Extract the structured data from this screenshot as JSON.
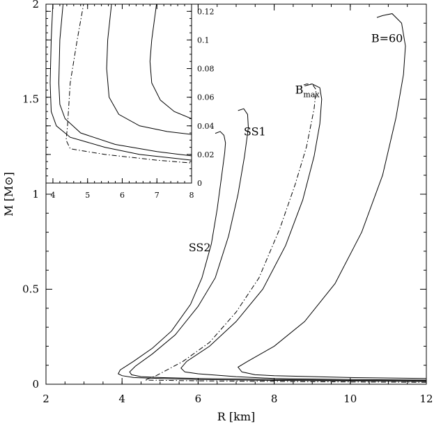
{
  "chart_data": {
    "type": "line",
    "xlabel": "R [km]",
    "ylabel": "M [M⊙]",
    "xlim": [
      2,
      12
    ],
    "ylim": [
      0,
      2
    ],
    "x_ticks": [
      2,
      4,
      6,
      8,
      10,
      12
    ],
    "y_ticks": [
      0,
      0.5,
      1,
      1.5,
      2
    ],
    "x_tick_labels": [
      "2",
      "4",
      "6",
      "8",
      "10",
      "12"
    ],
    "y_tick_labels": [
      "0",
      "0.5",
      "1",
      "1.5",
      "2"
    ],
    "grid": false,
    "annotations": [
      {
        "text": "B=60",
        "x": 10.55,
        "y": 1.8
      },
      {
        "text": "B",
        "sub": "max",
        "x": 8.55,
        "y": 1.53
      },
      {
        "text": "SS1",
        "x": 7.2,
        "y": 1.31
      },
      {
        "text": "SS2",
        "x": 5.75,
        "y": 0.7
      }
    ],
    "series": [
      {
        "style": "solid",
        "points": [
          [
            12,
            0.015
          ],
          [
            10,
            0.018
          ],
          [
            8,
            0.02
          ],
          [
            6,
            0.025
          ],
          [
            5,
            0.03
          ],
          [
            4.3,
            0.035
          ],
          [
            4.0,
            0.045
          ],
          [
            3.9,
            0.055
          ],
          [
            3.95,
            0.075
          ],
          [
            4.3,
            0.12
          ],
          [
            4.8,
            0.19
          ],
          [
            5.3,
            0.28
          ],
          [
            5.8,
            0.42
          ],
          [
            6.1,
            0.56
          ],
          [
            6.35,
            0.74
          ],
          [
            6.5,
            0.92
          ],
          [
            6.62,
            1.1
          ],
          [
            6.7,
            1.22
          ],
          [
            6.72,
            1.27
          ],
          [
            6.68,
            1.31
          ],
          [
            6.58,
            1.33
          ],
          [
            6.45,
            1.32
          ]
        ]
      },
      {
        "style": "solid",
        "points": [
          [
            12,
            0.018
          ],
          [
            10,
            0.02
          ],
          [
            8,
            0.025
          ],
          [
            6,
            0.03
          ],
          [
            5,
            0.035
          ],
          [
            4.5,
            0.04
          ],
          [
            4.25,
            0.05
          ],
          [
            4.2,
            0.065
          ],
          [
            4.35,
            0.095
          ],
          [
            4.8,
            0.16
          ],
          [
            5.4,
            0.26
          ],
          [
            6.0,
            0.41
          ],
          [
            6.45,
            0.56
          ],
          [
            6.8,
            0.78
          ],
          [
            7.05,
            1.0
          ],
          [
            7.22,
            1.2
          ],
          [
            7.32,
            1.35
          ],
          [
            7.3,
            1.42
          ],
          [
            7.2,
            1.45
          ],
          [
            7.05,
            1.44
          ]
        ]
      },
      {
        "style": "dashdot",
        "points": [
          [
            12,
            0.01
          ],
          [
            10,
            0.012
          ],
          [
            8,
            0.015
          ],
          [
            6,
            0.018
          ],
          [
            5.2,
            0.02
          ],
          [
            4.6,
            0.022
          ],
          [
            4.9,
            0.045
          ],
          [
            5.6,
            0.12
          ],
          [
            6.3,
            0.22
          ],
          [
            7.0,
            0.38
          ],
          [
            7.6,
            0.56
          ],
          [
            8.15,
            0.82
          ],
          [
            8.55,
            1.05
          ],
          [
            8.85,
            1.25
          ],
          [
            9.05,
            1.45
          ],
          [
            9.1,
            1.55
          ],
          [
            9.0,
            1.58
          ],
          [
            8.85,
            1.58
          ],
          [
            8.7,
            1.57
          ]
        ]
      },
      {
        "style": "solid",
        "points": [
          [
            12,
            0.022
          ],
          [
            10,
            0.025
          ],
          [
            8,
            0.03
          ],
          [
            7,
            0.04
          ],
          [
            6.0,
            0.055
          ],
          [
            5.65,
            0.065
          ],
          [
            5.55,
            0.085
          ],
          [
            5.7,
            0.12
          ],
          [
            6.3,
            0.2
          ],
          [
            7.0,
            0.33
          ],
          [
            7.7,
            0.5
          ],
          [
            8.3,
            0.73
          ],
          [
            8.75,
            0.97
          ],
          [
            9.05,
            1.2
          ],
          [
            9.2,
            1.37
          ],
          [
            9.25,
            1.5
          ],
          [
            9.2,
            1.56
          ],
          [
            9.0,
            1.58
          ],
          [
            8.8,
            1.57
          ]
        ]
      },
      {
        "style": "solid",
        "points": [
          [
            12,
            0.03
          ],
          [
            10,
            0.035
          ],
          [
            8,
            0.045
          ],
          [
            7.5,
            0.05
          ],
          [
            7.15,
            0.065
          ],
          [
            7.05,
            0.09
          ],
          [
            7.3,
            0.12
          ],
          [
            8.0,
            0.2
          ],
          [
            8.8,
            0.33
          ],
          [
            9.6,
            0.53
          ],
          [
            10.3,
            0.8
          ],
          [
            10.85,
            1.1
          ],
          [
            11.2,
            1.4
          ],
          [
            11.4,
            1.63
          ],
          [
            11.45,
            1.78
          ],
          [
            11.35,
            1.9
          ],
          [
            11.1,
            1.95
          ],
          [
            10.85,
            1.94
          ],
          [
            10.7,
            1.93
          ]
        ]
      }
    ],
    "inset": {
      "xlim": [
        3.8,
        8
      ],
      "ylim": [
        0,
        0.125
      ],
      "x_ticks": [
        4,
        5,
        6,
        7,
        8
      ],
      "y_ticks": [
        0,
        0.02,
        0.04,
        0.06,
        0.08,
        0.1,
        0.12
      ],
      "x_tick_labels": [
        "4",
        "5",
        "6",
        "7",
        "8"
      ],
      "y_tick_labels": [
        "0",
        "0.02",
        "0.04",
        "0.06",
        "0.08",
        "0.1",
        "0.12"
      ],
      "series": [
        {
          "style": "solid",
          "points": [
            [
              4.0,
              0.127
            ],
            [
              3.95,
              0.1
            ],
            [
              3.92,
              0.07
            ],
            [
              3.95,
              0.05
            ],
            [
              4.1,
              0.04
            ],
            [
              4.5,
              0.032
            ],
            [
              5.5,
              0.025
            ],
            [
              6.5,
              0.02
            ],
            [
              8,
              0.016
            ]
          ]
        },
        {
          "style": "solid",
          "points": [
            [
              4.3,
              0.127
            ],
            [
              4.2,
              0.1
            ],
            [
              4.17,
              0.07
            ],
            [
              4.2,
              0.055
            ],
            [
              4.35,
              0.045
            ],
            [
              4.8,
              0.035
            ],
            [
              5.8,
              0.027
            ],
            [
              7,
              0.022
            ],
            [
              8,
              0.019
            ]
          ]
        },
        {
          "style": "dashdot",
          "points": [
            [
              4.9,
              0.127
            ],
            [
              4.7,
              0.1
            ],
            [
              4.5,
              0.07
            ],
            [
              4.42,
              0.04
            ],
            [
              4.38,
              0.03
            ],
            [
              4.5,
              0.024
            ],
            [
              5.5,
              0.02
            ],
            [
              7,
              0.016
            ],
            [
              8,
              0.014
            ]
          ]
        },
        {
          "style": "solid",
          "points": [
            [
              5.7,
              0.127
            ],
            [
              5.58,
              0.1
            ],
            [
              5.55,
              0.08
            ],
            [
              5.62,
              0.06
            ],
            [
              5.9,
              0.048
            ],
            [
              6.5,
              0.04
            ],
            [
              7.3,
              0.036
            ],
            [
              8,
              0.034
            ]
          ]
        },
        {
          "style": "solid",
          "points": [
            [
              7.0,
              0.127
            ],
            [
              6.85,
              0.1
            ],
            [
              6.8,
              0.085
            ],
            [
              6.85,
              0.07
            ],
            [
              7.1,
              0.058
            ],
            [
              7.5,
              0.05
            ],
            [
              8,
              0.045
            ]
          ]
        }
      ]
    }
  }
}
